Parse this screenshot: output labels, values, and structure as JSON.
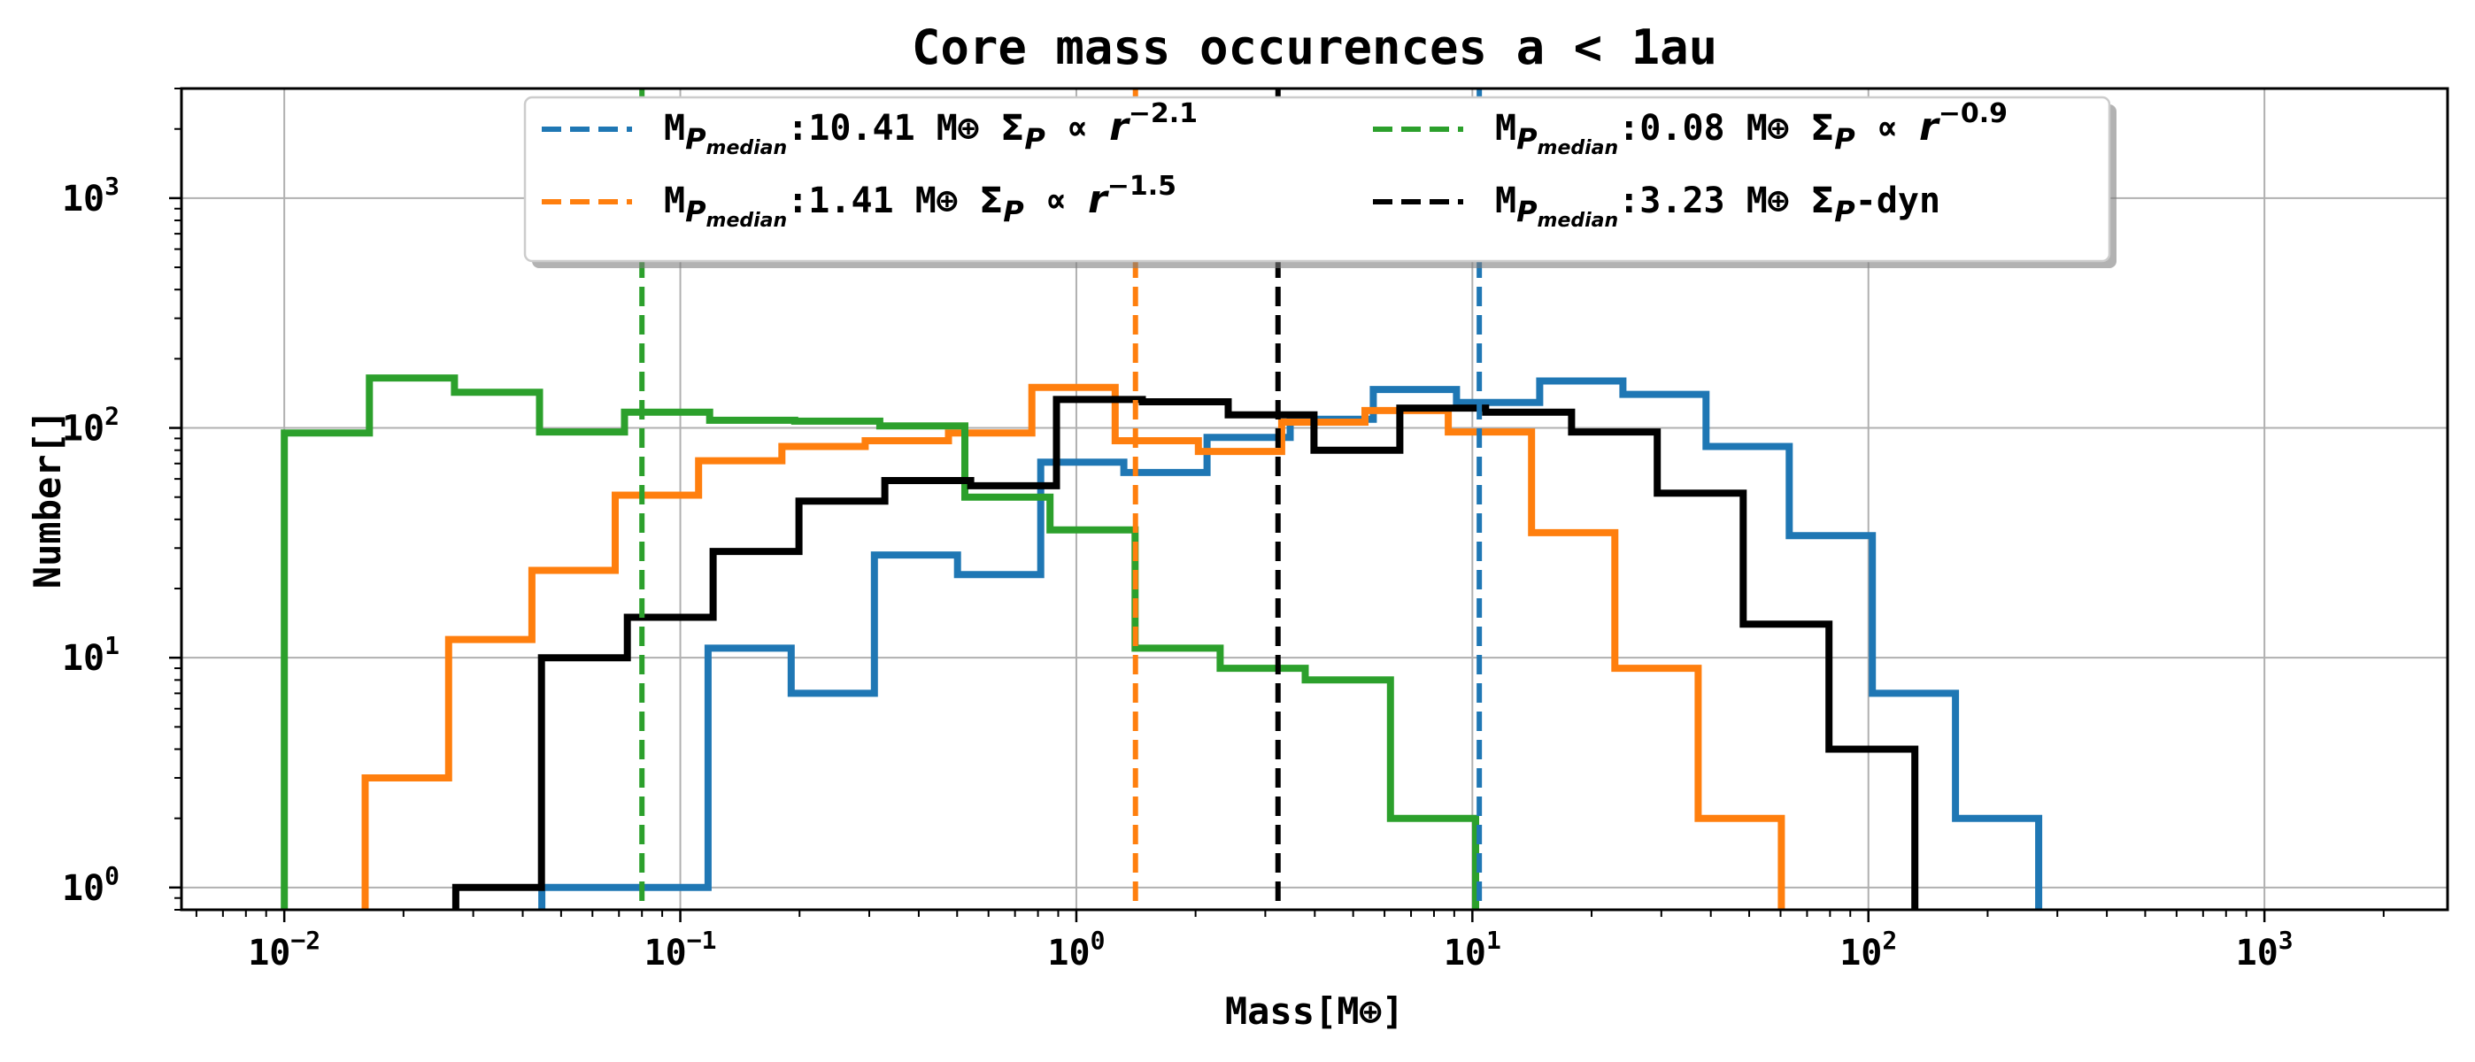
{
  "chart_data": {
    "type": "histogram_step",
    "title": "Core mass occurences a < 1au",
    "xlabel": "Mass[M⊕]",
    "ylabel": "Number[]",
    "xscale": "log",
    "yscale": "log",
    "xlim": [
      0.0055,
      2900
    ],
    "ylim": [
      0.8,
      3000
    ],
    "grid": true,
    "x_ticks": [
      {
        "value": 0.01,
        "base": "10",
        "exp": "−2"
      },
      {
        "value": 0.1,
        "base": "10",
        "exp": "−1"
      },
      {
        "value": 1,
        "base": "10",
        "exp": "0"
      },
      {
        "value": 10,
        "base": "10",
        "exp": "1"
      },
      {
        "value": 100,
        "base": "10",
        "exp": "2"
      },
      {
        "value": 1000,
        "base": "10",
        "exp": "3"
      }
    ],
    "y_ticks": [
      {
        "value": 1,
        "base": "10",
        "exp": "0"
      },
      {
        "value": 10,
        "base": "10",
        "exp": "1"
      },
      {
        "value": 100,
        "base": "10",
        "exp": "2"
      },
      {
        "value": 1000,
        "base": "10",
        "exp": "3"
      }
    ],
    "legend_location": "upper-center",
    "series": [
      {
        "name": "blue",
        "color": "#1f77b4",
        "legend": {
          "prefix": "M",
          "sub": "P",
          "subsub": "median",
          "value": ":10.41 M⊕ ",
          "sigma": "Σ",
          "sigma_sub": "P",
          "prop": " ∝ ",
          "r": "r",
          "exp": "−2.1"
        },
        "median": 10.41,
        "edges": [
          0.0447,
          0.0724,
          0.1175,
          0.1905,
          0.309,
          0.501,
          0.813,
          1.318,
          2.138,
          3.467,
          5.62,
          9.12,
          14.79,
          23.99,
          38.9,
          63.1,
          102.3,
          165.9,
          269.2,
          436.5
        ],
        "counts": [
          1,
          1,
          11,
          7,
          28,
          23,
          71,
          64,
          91,
          109,
          147,
          129,
          160,
          140,
          83,
          34,
          7,
          2,
          0
        ]
      },
      {
        "name": "orange",
        "color": "#ff7f0e",
        "legend": {
          "prefix": "M",
          "sub": "P",
          "subsub": "median",
          "value": ":1.41 M⊕ ",
          "sigma": "Σ",
          "sigma_sub": "P",
          "prop": " ∝ ",
          "r": "r",
          "exp": "−1.5"
        },
        "median": 1.41,
        "edges": [
          0.016,
          0.026,
          0.0422,
          0.0685,
          0.1112,
          0.1805,
          0.293,
          0.4755,
          0.772,
          1.253,
          2.033,
          3.3,
          5.356,
          8.693,
          14.11,
          22.9,
          37.17,
          60.3,
          97.9
        ],
        "counts": [
          3,
          12,
          24,
          51,
          72,
          83,
          88,
          95,
          150,
          88,
          79,
          106,
          119,
          96,
          35,
          9,
          2,
          0
        ]
      },
      {
        "name": "green",
        "color": "#2ca02c",
        "legend": {
          "prefix": "M",
          "sub": "P",
          "subsub": "median",
          "value": ":0.08 M⊕ ",
          "sigma": "Σ",
          "sigma_sub": "P",
          "prop": " ∝ ",
          "r": "r",
          "exp": "−0.9"
        },
        "median": 0.08,
        "edges": [
          0.01,
          0.0164,
          0.0269,
          0.0441,
          0.0723,
          0.1186,
          0.1945,
          0.319,
          0.523,
          0.858,
          1.407,
          2.307,
          3.784,
          6.21,
          10.19,
          16.7
        ],
        "counts": [
          95,
          165,
          143,
          96,
          117,
          108,
          107,
          102,
          50,
          36,
          11,
          9,
          8,
          2,
          0
        ]
      },
      {
        "name": "black",
        "color": "#000000",
        "legend": {
          "prefix": "M",
          "sub": "P",
          "subsub": "median",
          "value": ":3.23 M⊕ ",
          "sigma": "Σ",
          "sigma_sub": "P",
          "prop": "-dyn",
          "r": "",
          "exp": ""
        },
        "median": 3.23,
        "edges": [
          0.0271,
          0.0446,
          0.0735,
          0.121,
          0.1994,
          0.3284,
          0.541,
          0.891,
          1.468,
          2.418,
          3.982,
          6.56,
          10.8,
          17.8,
          29.3,
          48.3,
          79.5,
          131,
          215.8
        ],
        "counts": [
          1,
          10,
          15,
          29,
          48,
          59,
          56,
          133,
          130,
          114,
          80,
          122,
          117,
          96,
          52,
          14,
          4,
          0
        ]
      }
    ]
  }
}
